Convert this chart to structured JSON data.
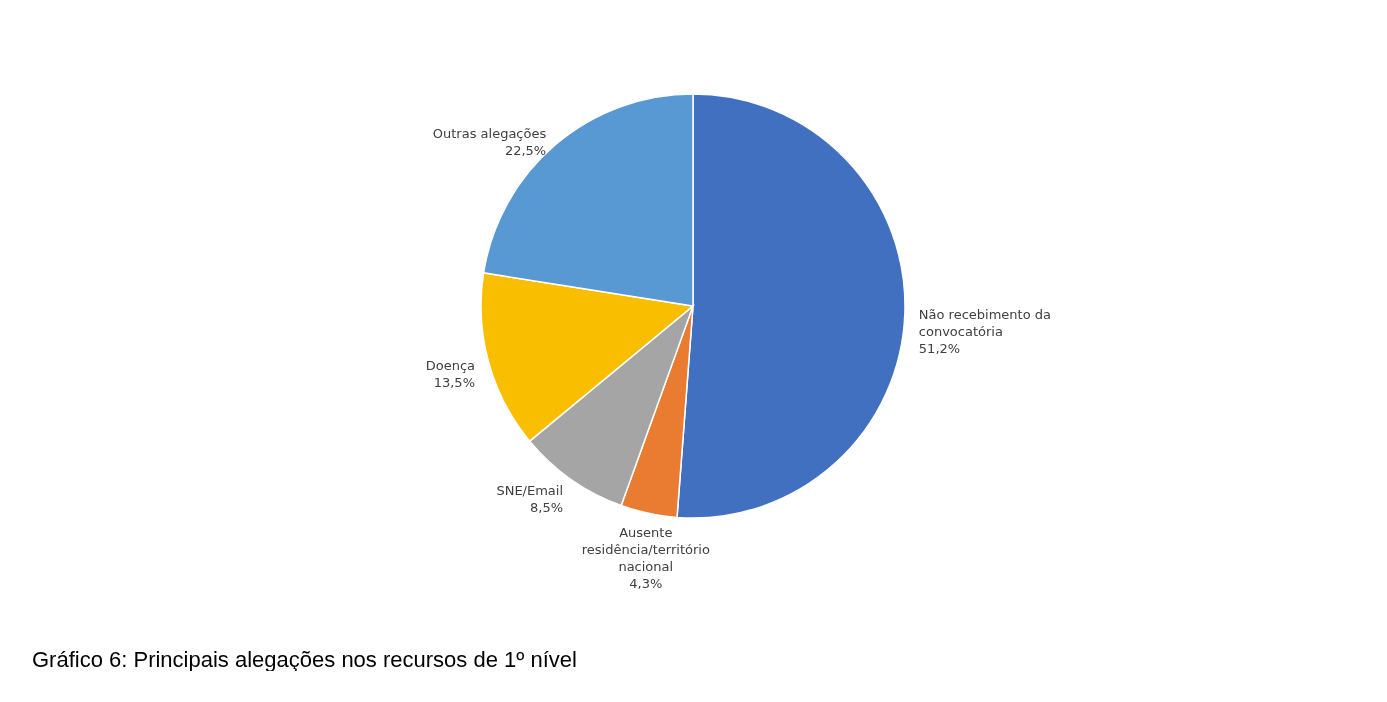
{
  "chart_data": {
    "type": "pie",
    "categories": [
      "Não recebimento da convocatória",
      "Ausente residência/território nacional",
      "SNE/Email",
      "Doença",
      "Outras alegações"
    ],
    "values": [
      51.2,
      4.3,
      8.5,
      13.5,
      22.5
    ],
    "colors": [
      "#4170c0",
      "#e97c31",
      "#a5a5a5",
      "#f9be00",
      "#5898d3"
    ],
    "value_labels": [
      "51,2%",
      "4,3%",
      "8,5%",
      "13,5%",
      "22,5%"
    ],
    "annotations": [
      "Gráfico 6: Principais alegações nos recursos de 1º nível"
    ]
  }
}
